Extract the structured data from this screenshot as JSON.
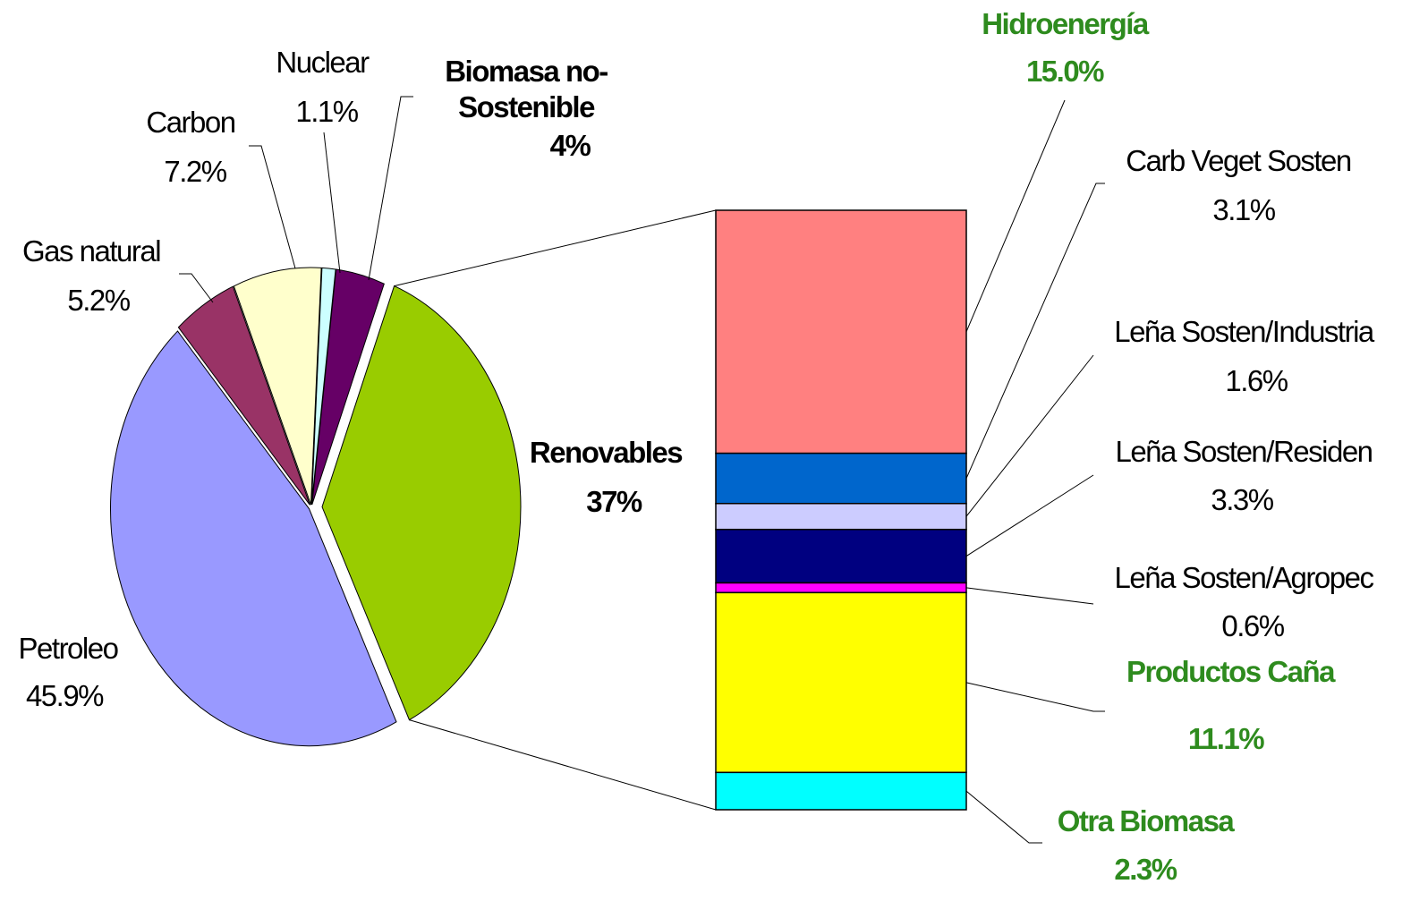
{
  "chart_data": [
    {
      "type": "pie",
      "categories": [
        "Nuclear",
        "Biomasa no-Sostenible",
        "Renovables",
        "Petroleo",
        "Gas natural",
        "Carbon"
      ],
      "values": [
        1.1,
        4,
        37,
        45.9,
        5.2,
        7.2
      ],
      "value_labels": [
        "1.1%",
        "4%",
        "37%",
        "45.9%",
        "5.2%",
        "7.2%"
      ],
      "colors": [
        "#ccffff",
        "#660066",
        "#99cc00",
        "#9999ff",
        "#993366",
        "#ffffcc"
      ]
    },
    {
      "type": "stacked_bar",
      "series": [
        {
          "name": "Hidroenergía",
          "color": "#ff8080",
          "values": [
            15.0
          ],
          "value_labels": [
            "15.0%"
          ]
        },
        {
          "name": "Carb Veget Sosten",
          "color": "#0066cc",
          "values": [
            3.1
          ],
          "value_labels": [
            "3.1%"
          ]
        },
        {
          "name": "Leña Sosten/Industria",
          "color": "#ccccff",
          "values": [
            1.6
          ],
          "value_labels": [
            "1.6%"
          ]
        },
        {
          "name": "Leña Sosten/Residen",
          "color": "#000080",
          "values": [
            3.3
          ],
          "value_labels": [
            "3.3%"
          ]
        },
        {
          "name": "Leña Sosten/Agropec",
          "color": "#ff00ff",
          "values": [
            0.6
          ],
          "value_labels": [
            "0.6%"
          ]
        },
        {
          "name": "Productos Caña",
          "color": "#ffff00",
          "values": [
            11.1
          ],
          "value_labels": [
            "11.1%"
          ]
        },
        {
          "name": "Otra Biomasa",
          "color": "#00ffff",
          "values": [
            2.3
          ],
          "value_labels": [
            "2.3%"
          ]
        }
      ]
    }
  ]
}
